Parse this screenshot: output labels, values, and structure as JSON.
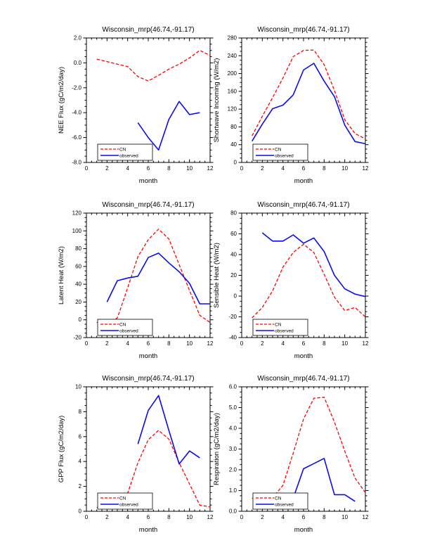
{
  "page": {
    "background": "#ffffff"
  },
  "chart_data": [
    {
      "id": "nee-flux",
      "type": "line",
      "title": "Wisconsin_mrp(46.74,-91.17)",
      "xlabel": "month",
      "ylabel": "NEE Flux (gC/m2/day)",
      "xlim": [
        0,
        12
      ],
      "ylim": [
        -8,
        2
      ],
      "xticks": [
        0,
        2,
        4,
        6,
        8,
        10,
        12
      ],
      "yticks": [
        -8,
        -6,
        -4,
        -2,
        0,
        2
      ],
      "ytick_labels": [
        "-8.0",
        "-6.0",
        "-4.0",
        "-2.0",
        "0.0",
        "2.0"
      ],
      "minor_per_major": 3,
      "grid": false,
      "legend_position": "lower-left",
      "series": [
        {
          "name": "CN",
          "color": "#ff0000",
          "style": "dashed",
          "x": [
            1,
            2,
            3,
            4,
            5,
            6,
            7,
            8,
            9,
            10,
            11,
            12
          ],
          "y": [
            0.3,
            0.1,
            -0.1,
            -0.3,
            -1.1,
            -1.45,
            -1.0,
            -0.5,
            -0.1,
            0.4,
            1.0,
            0.6
          ]
        },
        {
          "name": "observed",
          "color": "#0b0bee",
          "style": "solid",
          "x": [
            5,
            6,
            7,
            8,
            9,
            10,
            11
          ],
          "y": [
            -4.8,
            -6.0,
            -7.0,
            -4.55,
            -3.1,
            -4.15,
            -4.0
          ]
        }
      ]
    },
    {
      "id": "shortwave-incoming",
      "type": "line",
      "title": "Wisconsin_mrp(46.74,-91.17)",
      "xlabel": "month",
      "ylabel": "Shortwave Incoming (W/m2)",
      "xlim": [
        0,
        12
      ],
      "ylim": [
        0,
        280
      ],
      "xticks": [
        0,
        2,
        4,
        6,
        8,
        10,
        12
      ],
      "yticks": [
        0,
        40,
        80,
        120,
        160,
        200,
        240,
        280
      ],
      "ytick_labels": [
        "0",
        "40",
        "80",
        "120",
        "160",
        "200",
        "240",
        "280"
      ],
      "minor_per_major": 3,
      "grid": false,
      "legend_position": "lower-left",
      "series": [
        {
          "name": "CN",
          "color": "#ff0000",
          "style": "dashed",
          "x": [
            1,
            2,
            3,
            4,
            5,
            6,
            7,
            8,
            9,
            10,
            11,
            12
          ],
          "y": [
            60,
            104,
            146,
            190,
            238,
            252,
            253,
            220,
            162,
            96,
            65,
            53
          ]
        },
        {
          "name": "observed",
          "color": "#0b0bee",
          "style": "solid",
          "x": [
            1,
            2,
            3,
            4,
            5,
            6,
            7,
            8,
            9,
            10,
            11,
            12
          ],
          "y": [
            48,
            86,
            121,
            129,
            152,
            208,
            223,
            183,
            148,
            84,
            47,
            42
          ]
        }
      ]
    },
    {
      "id": "latent-heat",
      "type": "line",
      "title": "Wisconsin_mrp(46.74,-91.17)",
      "xlabel": "month",
      "ylabel": "Latent Heat (W/m2)",
      "xlim": [
        0,
        12
      ],
      "ylim": [
        -20,
        120
      ],
      "xticks": [
        0,
        2,
        4,
        6,
        8,
        10,
        12
      ],
      "yticks": [
        -20,
        0,
        20,
        40,
        60,
        80,
        100,
        120
      ],
      "ytick_labels": [
        "-20",
        "0",
        "20",
        "40",
        "60",
        "80",
        "100",
        "120"
      ],
      "minor_per_major": 3,
      "grid": false,
      "legend_position": "lower-left",
      "series": [
        {
          "name": "CN",
          "color": "#ff0000",
          "style": "dashed",
          "x": [
            1,
            2,
            3,
            4,
            5,
            6,
            7,
            8,
            9,
            10,
            11,
            12
          ],
          "y": [
            -3,
            -3,
            2,
            36,
            71,
            90,
            102,
            91,
            62,
            33,
            5,
            -3
          ]
        },
        {
          "name": "observed",
          "color": "#0b0bee",
          "style": "solid",
          "x": [
            2,
            3,
            4,
            5,
            6,
            7,
            8,
            9,
            10,
            11,
            12
          ],
          "y": [
            20,
            44,
            47,
            49,
            70,
            75,
            64,
            54,
            41,
            18,
            18
          ]
        }
      ]
    },
    {
      "id": "sensible-heat",
      "type": "line",
      "title": "Wisconsin_mrp(46.74,-91.17)",
      "xlabel": "month",
      "ylabel": "Sensible Heat (W/m2)",
      "xlim": [
        0,
        12
      ],
      "ylim": [
        -40,
        80
      ],
      "xticks": [
        0,
        2,
        4,
        6,
        8,
        10,
        12
      ],
      "yticks": [
        -40,
        -20,
        0,
        20,
        40,
        60,
        80
      ],
      "ytick_labels": [
        "-40",
        "-20",
        "0",
        "20",
        "40",
        "60",
        "80"
      ],
      "minor_per_major": 3,
      "grid": false,
      "legend_position": "lower-left",
      "series": [
        {
          "name": "CN",
          "color": "#ff0000",
          "style": "dashed",
          "x": [
            1,
            2,
            3,
            4,
            5,
            6,
            7,
            8,
            9,
            10,
            11,
            12
          ],
          "y": [
            -21,
            -11,
            5,
            28,
            42,
            50,
            42,
            21,
            -1,
            -14,
            -11,
            -20
          ]
        },
        {
          "name": "observed",
          "color": "#0b0bee",
          "style": "solid",
          "x": [
            2,
            3,
            4,
            5,
            6,
            7,
            8,
            9,
            10,
            11,
            12
          ],
          "y": [
            61,
            53,
            53,
            59,
            51,
            56,
            43,
            20,
            7,
            2,
            -0.5
          ]
        }
      ]
    },
    {
      "id": "gpp-flux",
      "type": "line",
      "title": "Wisconsin_mrp(46.74,-91.17)",
      "xlabel": "month",
      "ylabel": "GPP Flux (gC/m2/day)",
      "xlim": [
        0,
        12
      ],
      "ylim": [
        0,
        10
      ],
      "xticks": [
        0,
        2,
        4,
        6,
        8,
        10,
        12
      ],
      "yticks": [
        0,
        2,
        4,
        6,
        8,
        10
      ],
      "ytick_labels": [
        "0",
        "2",
        "4",
        "6",
        "8",
        "10"
      ],
      "minor_per_major": 3,
      "grid": false,
      "legend_position": "lower-left",
      "series": [
        {
          "name": "CN",
          "color": "#ff0000",
          "style": "dashed",
          "x": [
            1,
            2,
            3,
            4,
            5,
            6,
            7,
            8,
            9,
            10,
            11,
            12
          ],
          "y": [
            0.3,
            0.4,
            0.7,
            1.45,
            3.9,
            5.75,
            6.5,
            5.8,
            3.9,
            2.2,
            0.5,
            0.35
          ]
        },
        {
          "name": "observed",
          "color": "#0b0bee",
          "style": "solid",
          "x": [
            5,
            6,
            7,
            8,
            9,
            10,
            11
          ],
          "y": [
            5.4,
            8.1,
            9.3,
            6.5,
            3.8,
            4.85,
            4.3
          ]
        }
      ]
    },
    {
      "id": "respiration",
      "type": "line",
      "title": "Wisconsin_mrp(46.74,-91.17)",
      "xlabel": "month",
      "ylabel": "Respiration (gC/m2/day)",
      "xlim": [
        0,
        12
      ],
      "ylim": [
        0,
        6
      ],
      "xticks": [
        0,
        2,
        4,
        6,
        8,
        10,
        12
      ],
      "yticks": [
        0,
        1,
        2,
        3,
        4,
        5,
        6
      ],
      "ytick_labels": [
        "0.0",
        "1.0",
        "2.0",
        "3.0",
        "4.0",
        "5.0",
        "6.0"
      ],
      "minor_per_major": 3,
      "grid": false,
      "legend_position": "lower-left",
      "series": [
        {
          "name": "CN",
          "color": "#ff0000",
          "style": "dashed",
          "x": [
            1,
            2,
            3,
            4,
            5,
            6,
            7,
            8,
            9,
            10,
            11,
            12
          ],
          "y": [
            0.63,
            0.58,
            0.65,
            1.25,
            2.8,
            4.45,
            5.45,
            5.5,
            4.3,
            2.9,
            1.6,
            0.9
          ]
        },
        {
          "name": "observed",
          "color": "#0b0bee",
          "style": "solid",
          "x": [
            5,
            6,
            7,
            8,
            9,
            10,
            11
          ],
          "y": [
            0.63,
            2.05,
            2.3,
            2.55,
            0.8,
            0.8,
            0.48
          ]
        }
      ]
    }
  ]
}
